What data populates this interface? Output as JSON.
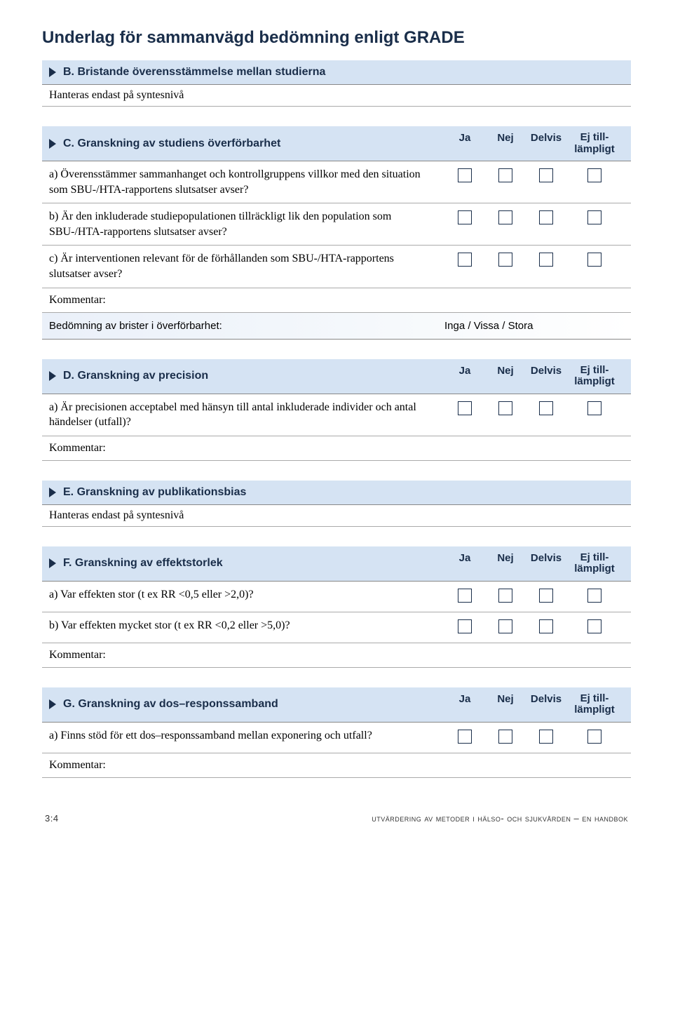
{
  "title": "Underlag för sammanvägd bedömning enligt GRADE",
  "columns": {
    "ja": "Ja",
    "nej": "Nej",
    "delvis": "Delvis",
    "ej": "Ej till-lämpligt"
  },
  "sections": {
    "B": {
      "title": "B. Bristande överensstämmelse mellan studierna",
      "subtext": "Hanteras endast på syntesnivå"
    },
    "C": {
      "title": "C. Granskning av studiens överförbarhet",
      "items": {
        "a": "a)  Överensstämmer sammanhanget och kontrollgruppens villkor med den situation som SBU-/HTA-rapportens slutsatser avser?",
        "b": "b)  Är den inkluderade studiepopulationen tillräckligt lik den population som SBU-/HTA-rapportens slutsatser avser?",
        "c": "c)  Är interventionen relevant för de förhållanden som SBU-/HTA-rapportens slutsatser avser?"
      },
      "kommentar": "Kommentar:",
      "assessment_label": "Bedömning av brister i överförbarhet:",
      "assessment_value": "Inga / Vissa / Stora"
    },
    "D": {
      "title": "D. Granskning av precision",
      "items": {
        "a": "a)  Är precisionen acceptabel med hänsyn till antal inkluderade individer och antal händelser (utfall)?"
      },
      "kommentar": "Kommentar:"
    },
    "E": {
      "title": "E. Granskning av publikationsbias",
      "subtext": "Hanteras endast på syntesnivå"
    },
    "F": {
      "title": "F. Granskning av effektstorlek",
      "items": {
        "a": "a)  Var effekten stor (t ex RR <0,5 eller >2,0)?",
        "b": "b)  Var effekten mycket stor (t ex RR <0,2 eller >5,0)?"
      },
      "kommentar": "Kommentar:"
    },
    "G": {
      "title": "G. Granskning av dos–responssamband",
      "items": {
        "a": "a)  Finns stöd för ett dos–responssamband mellan exponering och utfall?"
      },
      "kommentar": "Kommentar:"
    }
  },
  "footer": {
    "left": "3:4",
    "right": "utvärdering av metoder i hälso- och sjukvården – en handbok"
  }
}
